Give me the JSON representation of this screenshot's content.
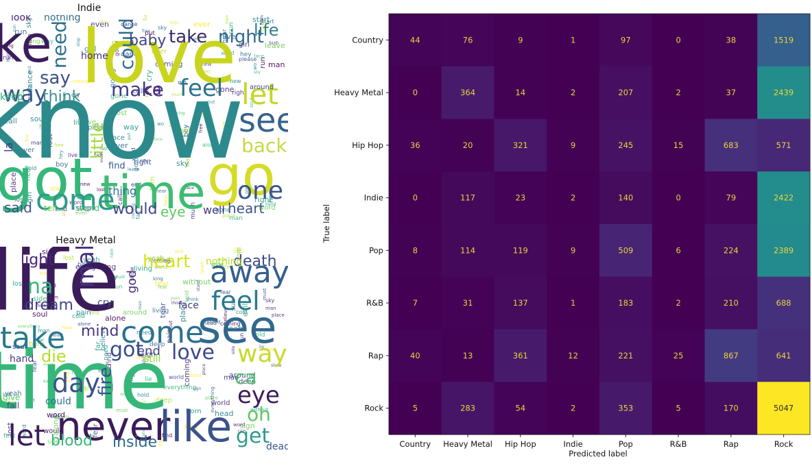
{
  "chart_data": [
    {
      "type": "wordcloud",
      "title": "Indie",
      "words": [
        {
          "text": "know",
          "color": "#2d8a8c"
        },
        {
          "text": "love",
          "color": "#c9d41e"
        },
        {
          "text": "got",
          "color": "#35b779"
        },
        {
          "text": "time",
          "color": "#3fbc73"
        },
        {
          "text": "go",
          "color": "#d5dc27"
        },
        {
          "text": "come",
          "color": "#2f9a8a"
        },
        {
          "text": "see",
          "color": "#37628c"
        },
        {
          "text": "let",
          "color": "#c5d62a"
        },
        {
          "text": "one",
          "color": "#3a548c"
        },
        {
          "text": "feel",
          "color": "#2c728e"
        },
        {
          "text": "back",
          "color": "#c7d84a"
        },
        {
          "text": "ke",
          "color": "#3b1c5a"
        },
        {
          "text": "make",
          "color": "#443983"
        },
        {
          "text": "could",
          "color": "#2e6e8e"
        },
        {
          "text": "take",
          "color": "#3a2a6b"
        },
        {
          "text": "night",
          "color": "#31688e"
        },
        {
          "text": "life",
          "color": "#2d7f8e"
        },
        {
          "text": "baby",
          "color": "#404688"
        },
        {
          "text": "need",
          "color": "#2e6f8e"
        },
        {
          "text": "say",
          "color": "#3b508a"
        },
        {
          "text": "way",
          "color": "#3b528b"
        },
        {
          "text": "think",
          "color": "#3a8f8b"
        },
        {
          "text": "ca",
          "color": "#482878"
        },
        {
          "text": "eye",
          "color": "#5ec962"
        },
        {
          "text": "would",
          "color": "#414487"
        },
        {
          "text": "well",
          "color": "#443983"
        },
        {
          "text": "heart",
          "color": "#3b528b"
        },
        {
          "text": "said",
          "color": "#3b528b"
        },
        {
          "text": "tell",
          "color": "#7ad151"
        },
        {
          "text": "world",
          "color": "#52c569"
        },
        {
          "text": "little",
          "color": "#a2da37"
        },
        {
          "text": "thing",
          "color": "#2c728e"
        },
        {
          "text": "find",
          "color": "#39568c"
        },
        {
          "text": "look",
          "color": "#482475"
        },
        {
          "text": "nothing",
          "color": "#2f6c8e"
        },
        {
          "text": "home",
          "color": "#46307e"
        },
        {
          "text": "la",
          "color": "#433e85"
        },
        {
          "text": "keep",
          "color": "#29af7f"
        },
        {
          "text": "around",
          "color": "#3e4c8a"
        },
        {
          "text": "tonight",
          "color": "#b8de29"
        }
      ]
    },
    {
      "type": "wordcloud",
      "title": "Heavy Metal",
      "words": [
        {
          "text": "life",
          "color": "#3b1c5a"
        },
        {
          "text": "time",
          "color": "#35b779"
        },
        {
          "text": "see",
          "color": "#31688e"
        },
        {
          "text": "come",
          "color": "#2d708e"
        },
        {
          "text": "take",
          "color": "#29798e"
        },
        {
          "text": "away",
          "color": "#355f8d"
        },
        {
          "text": "feel",
          "color": "#2a788e"
        },
        {
          "text": "never",
          "color": "#3b1c5a"
        },
        {
          "text": "like",
          "color": "#3b528b"
        },
        {
          "text": "way",
          "color": "#c8d92e"
        },
        {
          "text": "let",
          "color": "#3b1c5a"
        },
        {
          "text": "get",
          "color": "#2f9a8a"
        },
        {
          "text": "day",
          "color": "#3b528b"
        },
        {
          "text": "eye",
          "color": "#3b1c5a"
        },
        {
          "text": "love",
          "color": "#3a4a8a"
        },
        {
          "text": "got",
          "color": "#3a4a8a"
        },
        {
          "text": "ca",
          "color": "#4ac16d"
        },
        {
          "text": "oh",
          "color": "#5ec962"
        },
        {
          "text": "death",
          "color": "#3e4c8a"
        },
        {
          "text": "heart",
          "color": "#d8e219"
        },
        {
          "text": "light",
          "color": "#482475"
        },
        {
          "text": "make",
          "color": "#46307e"
        },
        {
          "text": "na",
          "color": "#31b57b"
        },
        {
          "text": "dream",
          "color": "#414487"
        },
        {
          "text": "mind",
          "color": "#443983"
        },
        {
          "text": "die",
          "color": "#b5de2b"
        },
        {
          "text": "end",
          "color": "#404688"
        },
        {
          "text": "blood",
          "color": "#35b779"
        },
        {
          "text": "inside",
          "color": "#31688e"
        },
        {
          "text": "fire",
          "color": "#3b528b"
        },
        {
          "text": "god",
          "color": "#46307e"
        },
        {
          "text": "cry",
          "color": "#3e4a89"
        },
        {
          "text": "face",
          "color": "#44397f"
        },
        {
          "text": "still",
          "color": "#8fd744"
        },
        {
          "text": "could",
          "color": "#2c728e"
        },
        {
          "text": "hand",
          "color": "#443983"
        },
        {
          "text": "dead",
          "color": "#3b528b"
        },
        {
          "text": "nothing",
          "color": "#b8de29"
        },
        {
          "text": "give",
          "color": "#5ec962"
        },
        {
          "text": "fall",
          "color": "#3e4a89"
        }
      ]
    },
    {
      "type": "heatmap",
      "xlabel": "Predicted label",
      "ylabel": "True label",
      "categories": [
        "Country",
        "Heavy Metal",
        "Hip Hop",
        "Indie",
        "Pop",
        "R&B",
        "Rap",
        "Rock"
      ],
      "values": [
        [
          44,
          76,
          9,
          1,
          97,
          0,
          38,
          1519
        ],
        [
          0,
          364,
          14,
          2,
          207,
          2,
          37,
          2439
        ],
        [
          36,
          20,
          321,
          9,
          245,
          15,
          683,
          571
        ],
        [
          0,
          117,
          23,
          2,
          140,
          0,
          79,
          2422
        ],
        [
          8,
          114,
          119,
          9,
          509,
          6,
          224,
          2389
        ],
        [
          7,
          31,
          137,
          1,
          183,
          2,
          210,
          688
        ],
        [
          40,
          13,
          361,
          12,
          221,
          25,
          867,
          641
        ],
        [
          5,
          283,
          54,
          2,
          353,
          5,
          170,
          5047
        ]
      ],
      "colormap": "viridis",
      "vmin": 0,
      "vmax": 5047,
      "text_color_low": "#e8d43a",
      "text_color_high": "#2a2a2a"
    }
  ]
}
